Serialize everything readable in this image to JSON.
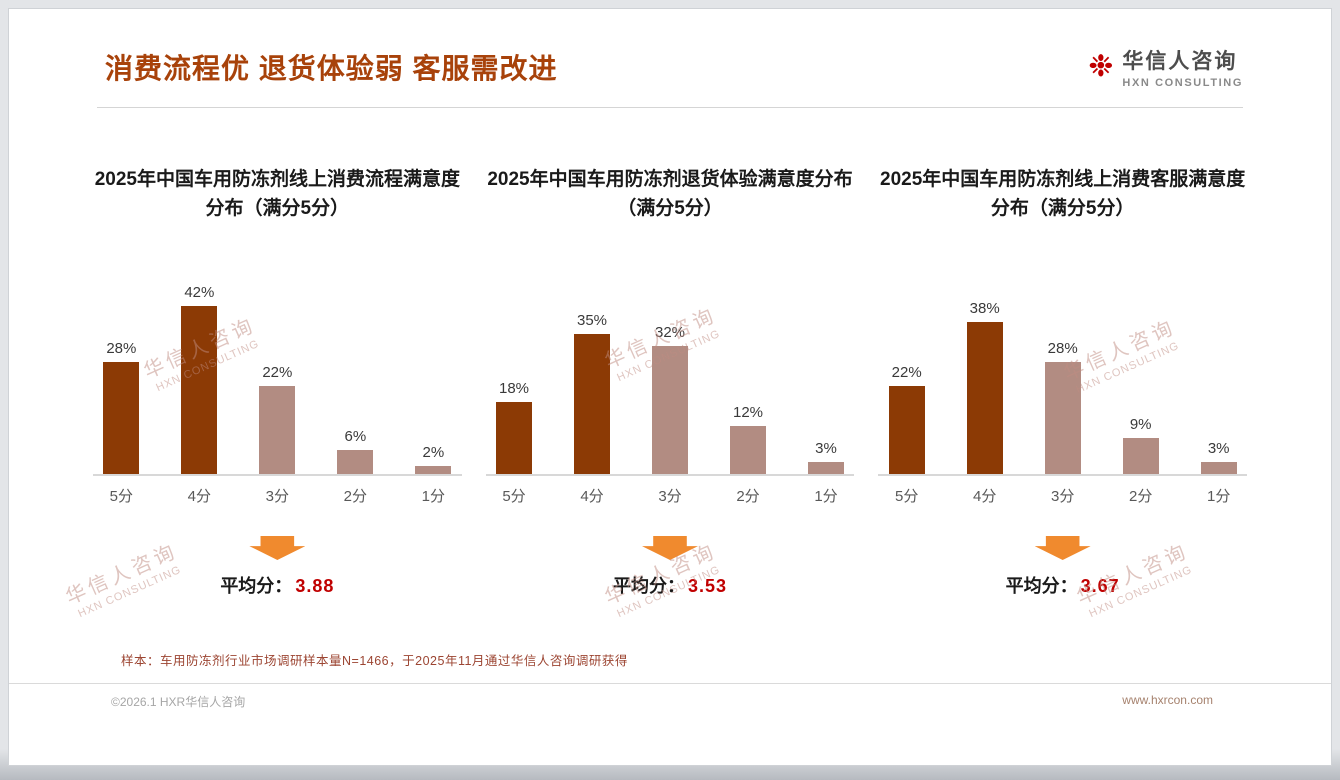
{
  "page": {
    "title": "消费流程优 退货体验弱 客服需改进",
    "logo": {
      "cn": "华信人咨询",
      "en": "HXN CONSULTING",
      "mark": "flower-seal-icon"
    },
    "avg_label": "平均分：",
    "watermark": {
      "cn": "华信人咨询",
      "en": "HXN CONSULTING"
    },
    "footnote": "样本：车用防冻剂行业市场调研样本量N=1466，于2025年11月通过华信人咨询调研获得",
    "footer_left": "©2026.1 HXR华信人咨询",
    "footer_right": "www.hxrcon.com"
  },
  "colors": {
    "title": "#a8420a",
    "dark_bar": "#8c3a05",
    "light_bar": "#b28c82",
    "average": "#c00000",
    "arrow": "#f08a2e"
  },
  "chart_data": [
    {
      "type": "bar",
      "title": "2025年中国车用防冻剂线上消费流程满意度分布（满分5分）",
      "categories": [
        "5分",
        "4分",
        "3分",
        "2分",
        "1分"
      ],
      "values": [
        28,
        42,
        22,
        6,
        2
      ],
      "labels": [
        "28%",
        "42%",
        "22%",
        "6%",
        "2%"
      ],
      "bar_palette": [
        "dark_bar",
        "dark_bar",
        "light_bar",
        "light_bar",
        "light_bar"
      ],
      "average": "3.88",
      "ylim": [
        0,
        45
      ],
      "grid": false,
      "legend": "none"
    },
    {
      "type": "bar",
      "title": "2025年中国车用防冻剂退货体验满意度分布（满分5分）",
      "categories": [
        "5分",
        "4分",
        "3分",
        "2分",
        "1分"
      ],
      "values": [
        18,
        35,
        32,
        12,
        3
      ],
      "labels": [
        "18%",
        "35%",
        "32%",
        "12%",
        "3%"
      ],
      "bar_palette": [
        "dark_bar",
        "dark_bar",
        "light_bar",
        "light_bar",
        "light_bar"
      ],
      "average": "3.53",
      "ylim": [
        0,
        45
      ],
      "grid": false,
      "legend": "none"
    },
    {
      "type": "bar",
      "title": "2025年中国车用防冻剂线上消费客服满意度分布（满分5分）",
      "categories": [
        "5分",
        "4分",
        "3分",
        "2分",
        "1分"
      ],
      "values": [
        22,
        38,
        28,
        9,
        3
      ],
      "labels": [
        "22%",
        "38%",
        "28%",
        "9%",
        "3%"
      ],
      "bar_palette": [
        "dark_bar",
        "dark_bar",
        "light_bar",
        "light_bar",
        "light_bar"
      ],
      "average": "3.67",
      "ylim": [
        0,
        45
      ],
      "grid": false,
      "legend": "none"
    }
  ]
}
